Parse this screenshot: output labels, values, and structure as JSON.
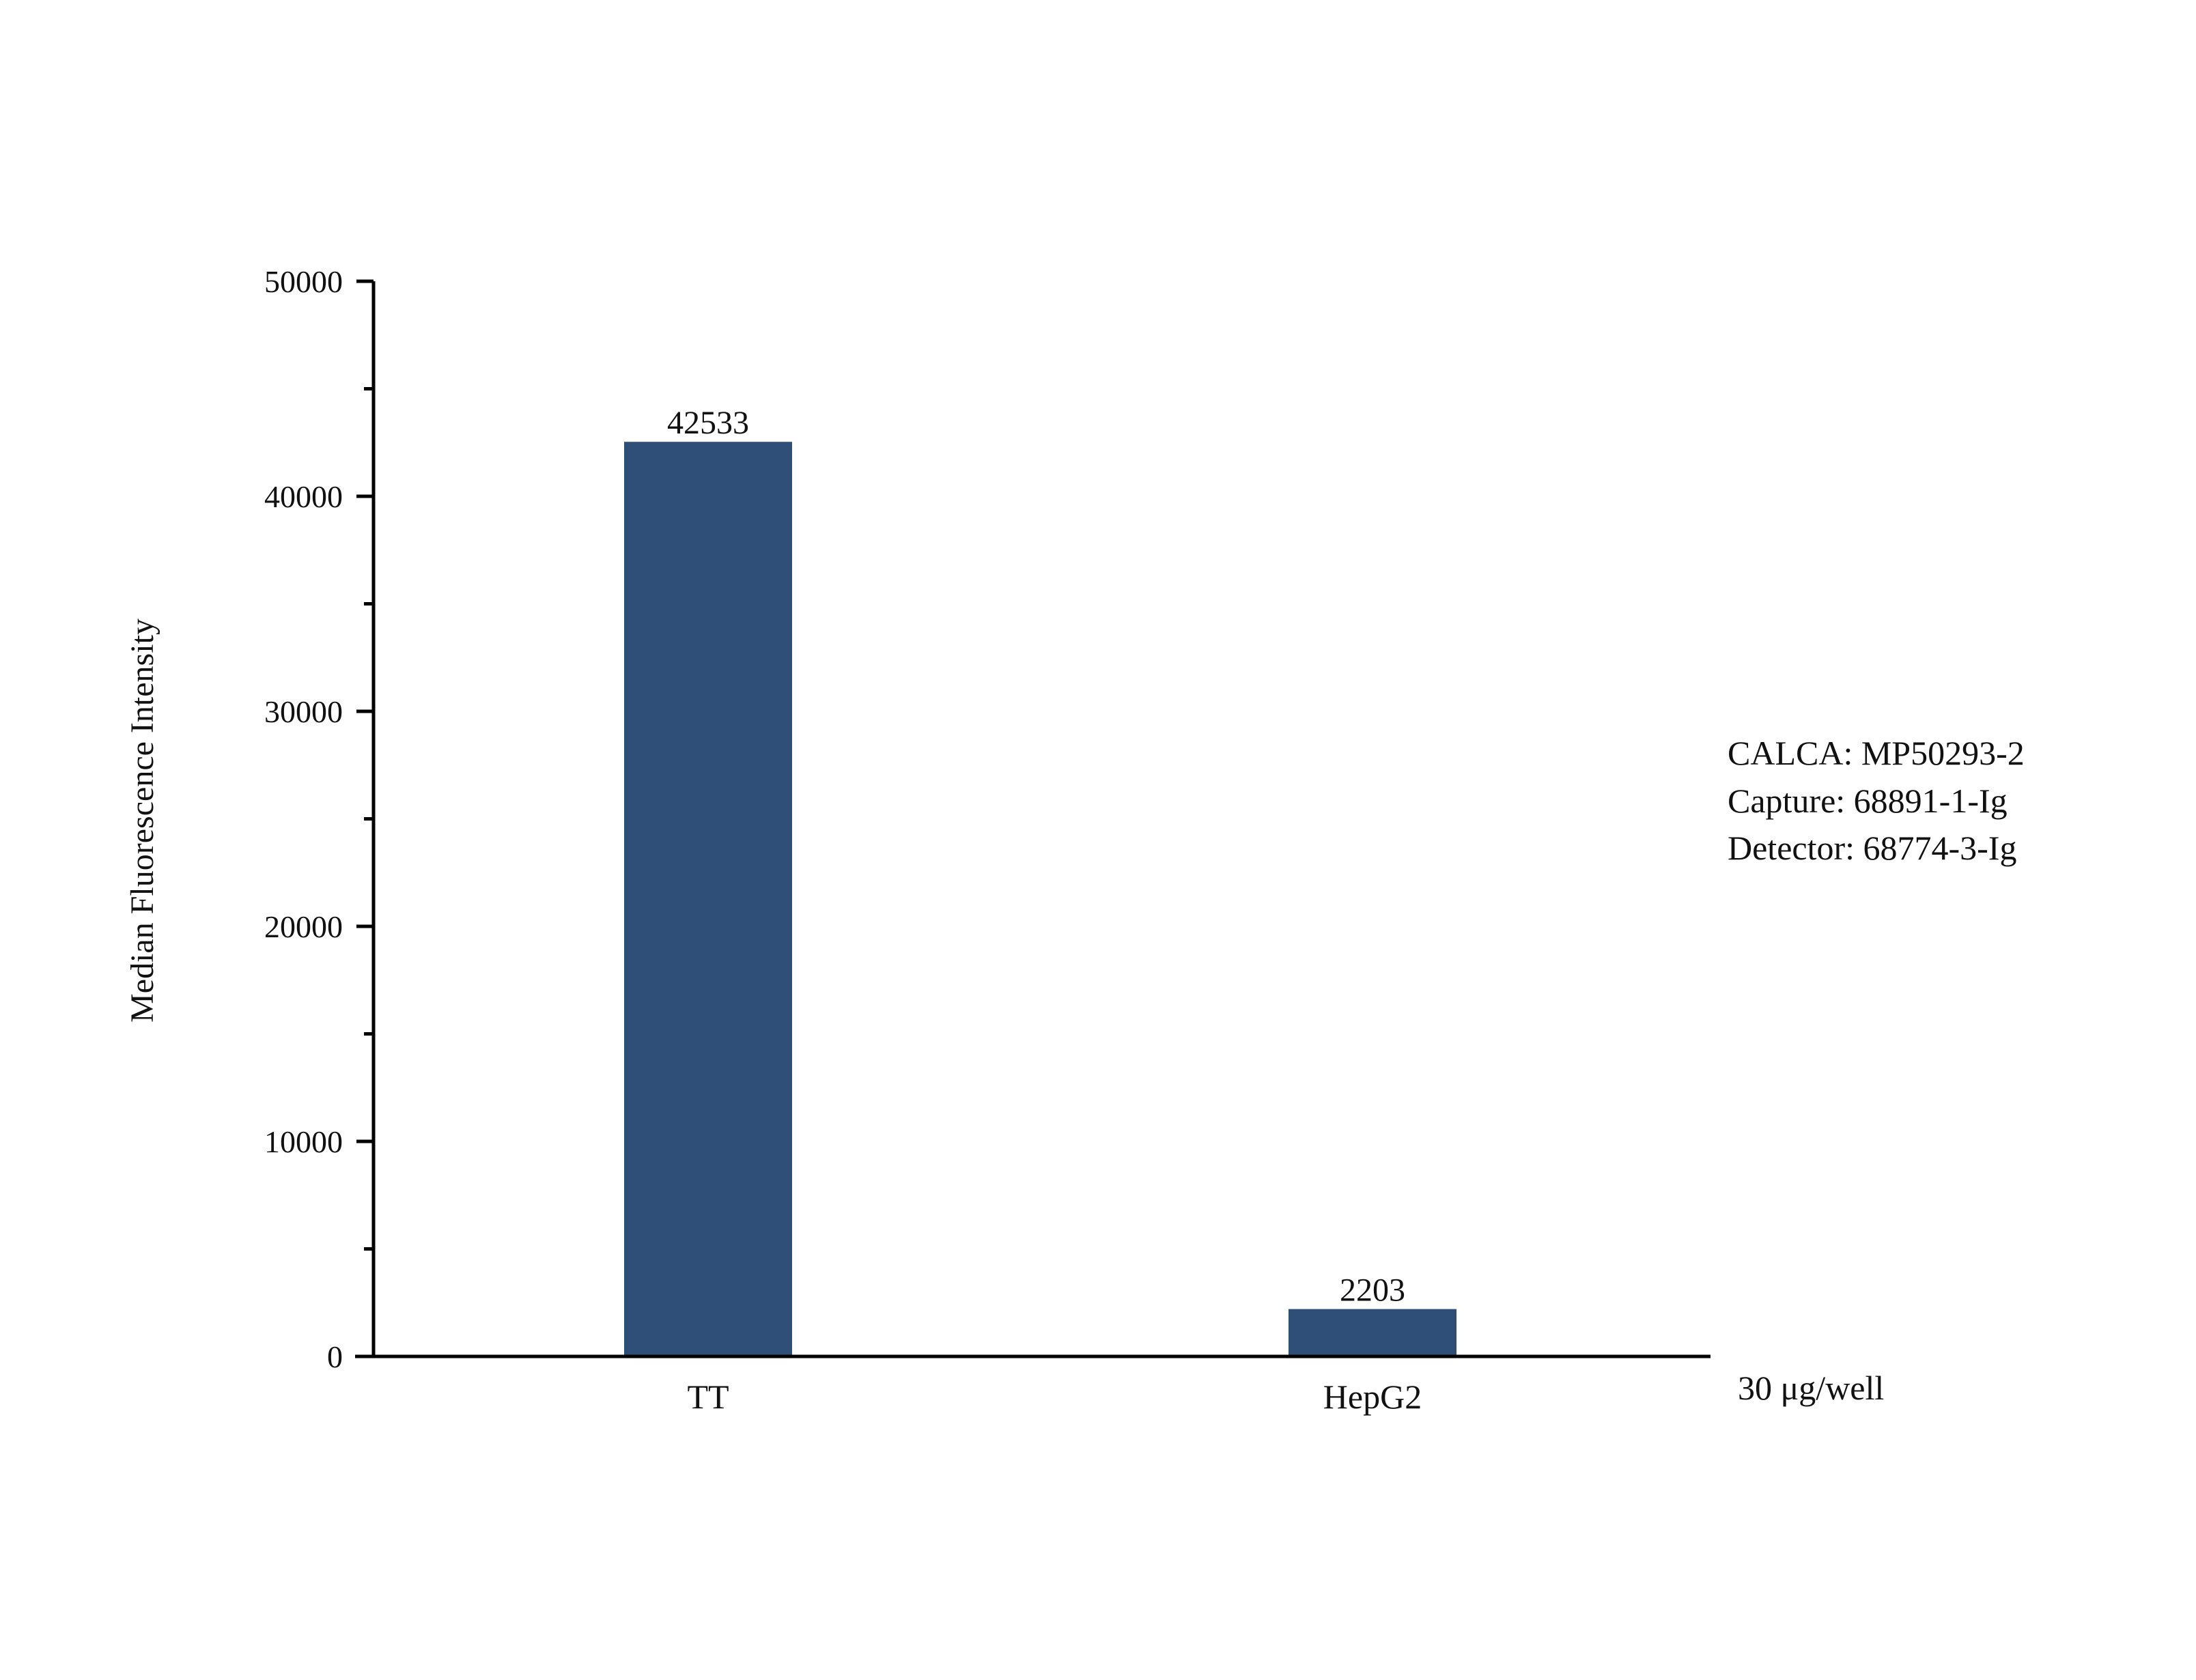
{
  "chart_data": {
    "type": "bar",
    "categories": [
      "TT",
      "HepG2"
    ],
    "values": [
      42533,
      2203
    ],
    "data_labels": [
      "42533",
      "2203"
    ],
    "title": "",
    "xlabel": "",
    "ylabel": "Median Fluorescence Intensity",
    "ylim": [
      0,
      50000
    ],
    "yticks": [
      "0",
      "10000",
      "20000",
      "30000",
      "40000",
      "50000"
    ],
    "minor_ticks": true,
    "grid": false,
    "legend": "none",
    "bar_color": "#304f78",
    "x_axis_note": "30 μg/well",
    "annotations": [
      "CALCA: MP50293-2",
      "Capture: 68891-1-Ig",
      "Detector: 68774-3-Ig"
    ]
  }
}
